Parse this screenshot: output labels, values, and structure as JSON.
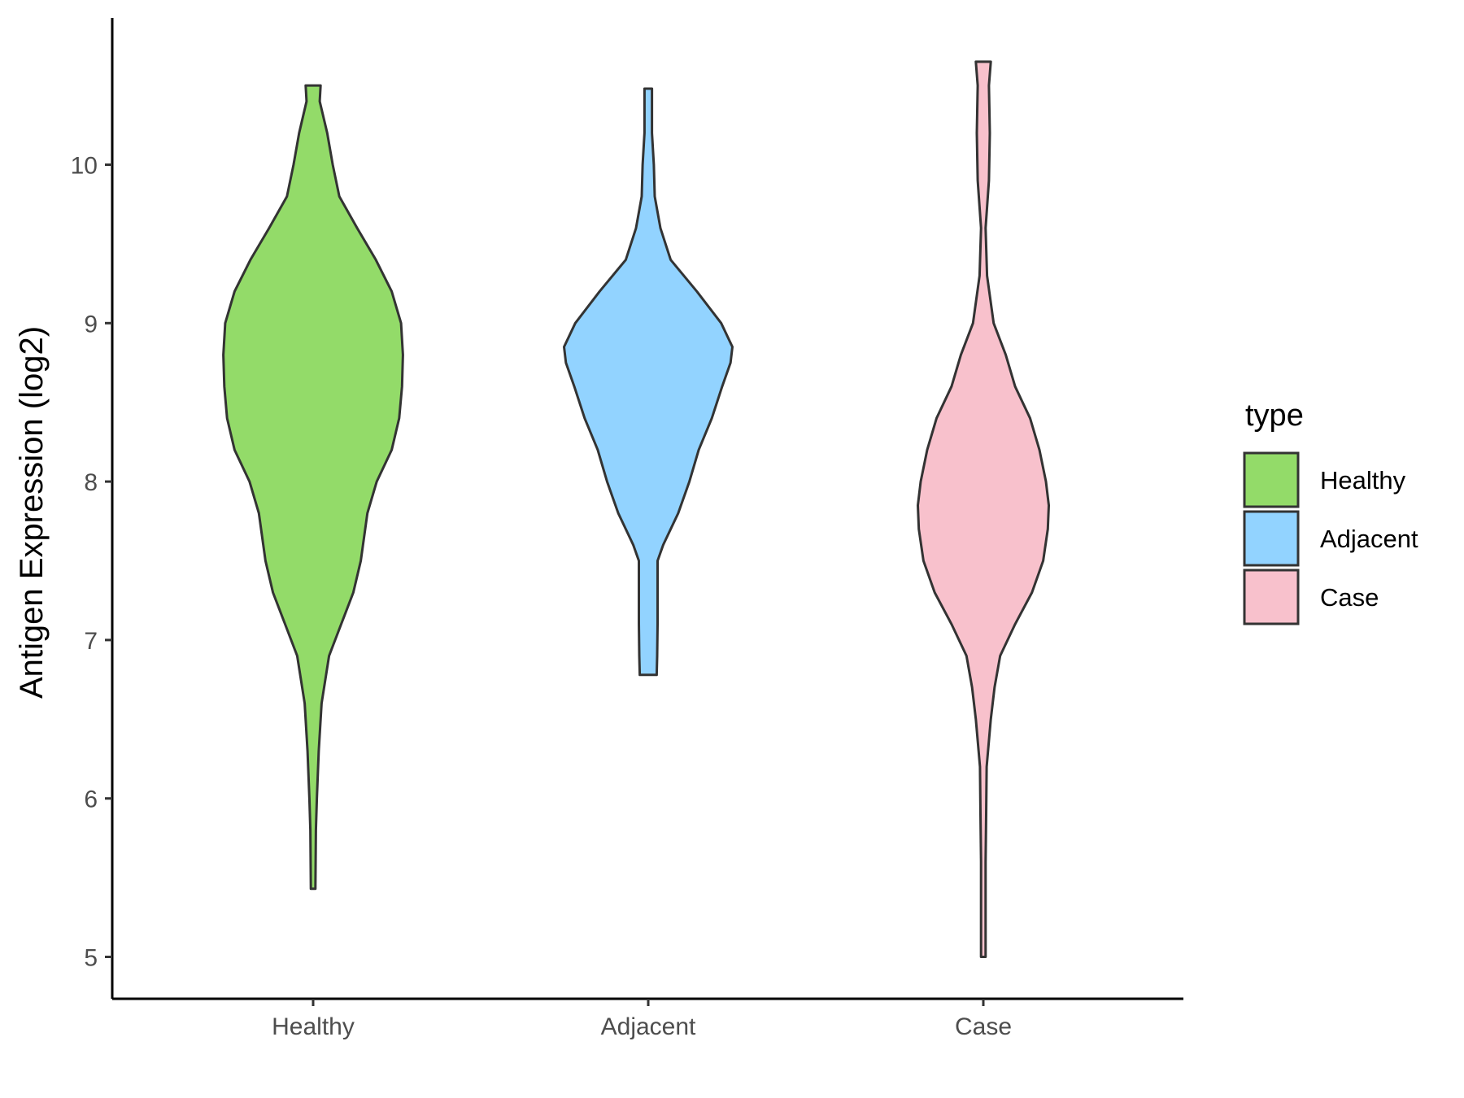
{
  "chart_data": {
    "type": "violin",
    "xlabel": "",
    "ylabel": "Antigen Expression (log2)",
    "ylim": [
      4.7,
      10.9
    ],
    "yticks": [
      5,
      6,
      7,
      8,
      9,
      10
    ],
    "categories": [
      "Healthy",
      "Adjacent",
      "Case"
    ],
    "legend": {
      "title": "type",
      "position": "right",
      "entries": [
        "Healthy",
        "Adjacent",
        "Case"
      ]
    },
    "grid": false,
    "series": [
      {
        "category": "Healthy",
        "color": "#93DB69",
        "range": [
          5.43,
          10.5
        ],
        "density": [
          [
            5.43,
            0.01
          ],
          [
            5.8,
            0.015
          ],
          [
            6.0,
            0.02
          ],
          [
            6.3,
            0.03
          ],
          [
            6.6,
            0.045
          ],
          [
            6.9,
            0.085
          ],
          [
            7.1,
            0.15
          ],
          [
            7.3,
            0.215
          ],
          [
            7.5,
            0.255
          ],
          [
            7.8,
            0.29
          ],
          [
            8.0,
            0.34
          ],
          [
            8.2,
            0.42
          ],
          [
            8.4,
            0.46
          ],
          [
            8.6,
            0.475
          ],
          [
            8.8,
            0.48
          ],
          [
            9.0,
            0.47
          ],
          [
            9.2,
            0.42
          ],
          [
            9.4,
            0.335
          ],
          [
            9.6,
            0.235
          ],
          [
            9.8,
            0.14
          ],
          [
            10.0,
            0.105
          ],
          [
            10.2,
            0.075
          ],
          [
            10.4,
            0.035
          ],
          [
            10.5,
            0.04
          ]
        ]
      },
      {
        "category": "Adjacent",
        "color": "#92D3FF",
        "range": [
          6.78,
          10.48
        ],
        "density": [
          [
            6.78,
            0.045
          ],
          [
            6.9,
            0.048
          ],
          [
            7.1,
            0.05
          ],
          [
            7.3,
            0.05
          ],
          [
            7.5,
            0.05
          ],
          [
            7.6,
            0.08
          ],
          [
            7.8,
            0.16
          ],
          [
            8.0,
            0.22
          ],
          [
            8.2,
            0.27
          ],
          [
            8.4,
            0.34
          ],
          [
            8.6,
            0.395
          ],
          [
            8.75,
            0.44
          ],
          [
            8.85,
            0.45
          ],
          [
            9.0,
            0.39
          ],
          [
            9.2,
            0.26
          ],
          [
            9.4,
            0.12
          ],
          [
            9.6,
            0.065
          ],
          [
            9.8,
            0.035
          ],
          [
            10.0,
            0.03
          ],
          [
            10.2,
            0.02
          ],
          [
            10.48,
            0.02
          ]
        ]
      },
      {
        "category": "Case",
        "color": "#F8C1CC",
        "range": [
          5.0,
          10.65
        ],
        "density": [
          [
            5.0,
            0.002
          ],
          [
            5.3,
            0.008
          ],
          [
            5.6,
            0.012
          ],
          [
            5.9,
            0.015
          ],
          [
            6.2,
            0.018
          ],
          [
            6.5,
            0.04
          ],
          [
            6.7,
            0.06
          ],
          [
            6.9,
            0.09
          ],
          [
            7.1,
            0.17
          ],
          [
            7.3,
            0.26
          ],
          [
            7.5,
            0.32
          ],
          [
            7.7,
            0.345
          ],
          [
            7.85,
            0.35
          ],
          [
            8.0,
            0.335
          ],
          [
            8.2,
            0.3
          ],
          [
            8.4,
            0.25
          ],
          [
            8.6,
            0.17
          ],
          [
            8.8,
            0.12
          ],
          [
            9.0,
            0.055
          ],
          [
            9.3,
            0.02
          ],
          [
            9.6,
            -0.01
          ],
          [
            9.9,
            -0.03
          ],
          [
            10.2,
            -0.035
          ],
          [
            10.5,
            -0.03
          ],
          [
            10.65,
            -0.04
          ]
        ]
      }
    ]
  }
}
